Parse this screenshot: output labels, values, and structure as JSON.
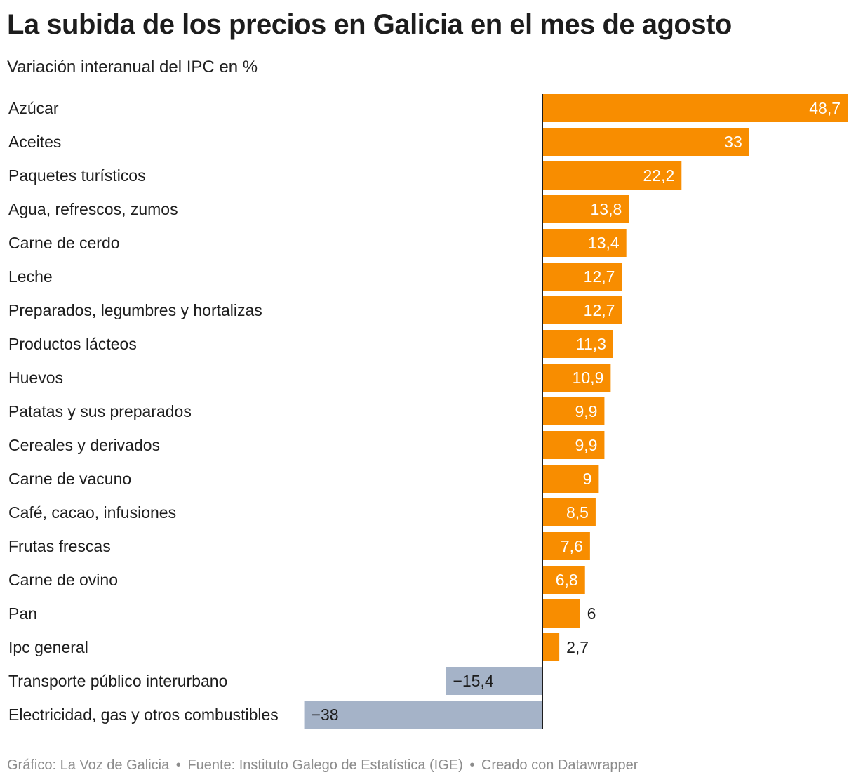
{
  "title": "La subida de los precios en Galicia en el mes de agosto",
  "subtitle": "Variación interanual del IPC en %",
  "footer": {
    "graphic": "Gráfico: La Voz de Galicia",
    "source": "Fuente: Instituto Galego de Estatística (IGE)",
    "credit": "Creado con Datawrapper",
    "separator": "•"
  },
  "colors": {
    "positive": "#f88d00",
    "negative": "#a5b3c8",
    "axis": "#1d1d1d",
    "label_inside": "#ffffff",
    "label_outside": "#1d1d1d"
  },
  "chart_data": {
    "type": "bar",
    "orientation": "horizontal",
    "title": "La subida de los precios en Galicia en el mes de agosto",
    "subtitle": "Variación interanual del IPC en %",
    "xlabel": "",
    "ylabel": "",
    "xlim": [
      -38,
      48.7
    ],
    "grid": false,
    "categories": [
      "Azúcar",
      "Aceites",
      "Paquetes turísticos",
      "Agua, refrescos, zumos",
      "Carne de cerdo",
      "Leche",
      "Preparados, legumbres y hortalizas",
      "Productos lácteos",
      "Huevos",
      "Patatas y sus preparados",
      "Cereales y derivados",
      "Carne de vacuno",
      "Café, cacao, infusiones",
      "Frutas frescas",
      "Carne de ovino",
      "Pan",
      "Ipc general",
      "Transporte público interurbano",
      "Electricidad, gas y otros combustibles"
    ],
    "values": [
      48.7,
      33,
      22.2,
      13.8,
      13.4,
      12.7,
      12.7,
      11.3,
      10.9,
      9.9,
      9.9,
      9,
      8.5,
      7.6,
      6.8,
      6,
      2.7,
      -15.4,
      -38
    ],
    "value_labels": [
      "48,7",
      "33",
      "22,2",
      "13,8",
      "13,4",
      "12,7",
      "12,7",
      "11,3",
      "10,9",
      "9,9",
      "9,9",
      "9",
      "8,5",
      "7,6",
      "6,8",
      "6",
      "2,7",
      "−15,4",
      "−38"
    ]
  }
}
